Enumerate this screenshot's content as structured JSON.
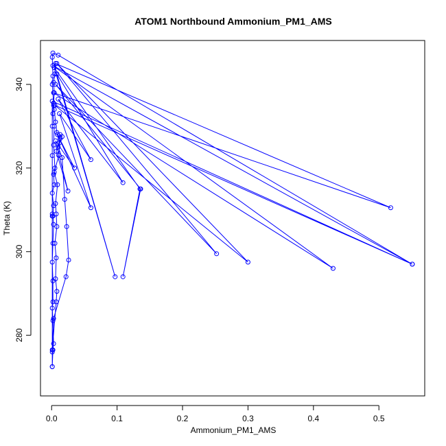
{
  "chart_data": {
    "type": "line",
    "title": "ATOM1 Northbound Ammonium_PM1_AMS",
    "xlabel": "Ammonium_PM1_AMS",
    "ylabel": "Theta (K)",
    "xlim": [
      -0.017,
      0.57
    ],
    "ylim": [
      265.5,
      350.5
    ],
    "xticks": [
      0.0,
      0.1,
      0.2,
      0.3,
      0.4,
      0.5
    ],
    "xtick_labels": [
      "0.0",
      "0.1",
      "0.2",
      "0.3",
      "0.4",
      "0.5"
    ],
    "yticks": [
      280,
      300,
      320,
      340
    ],
    "ytick_labels": [
      "280",
      "300",
      "320",
      "340"
    ],
    "grid": false,
    "series": [
      {
        "color": "#0000ff",
        "marker": "open-circle",
        "points": [
          [
            0.001,
            272.5
          ],
          [
            0.002,
            276.5
          ],
          [
            0.003,
            278.0
          ],
          [
            0.002,
            283.5
          ],
          [
            0.001,
            286.5
          ],
          [
            0.002,
            288.0
          ],
          [
            0.002,
            293.0
          ],
          [
            0.001,
            297.5
          ],
          [
            0.002,
            302.0
          ],
          [
            0.003,
            306.5
          ],
          [
            0.002,
            308.5
          ],
          [
            0.003,
            311.0
          ],
          [
            0.001,
            314.0
          ],
          [
            0.004,
            316.0
          ],
          [
            0.003,
            318.5
          ],
          [
            0.005,
            320.0
          ],
          [
            0.003,
            325.5
          ],
          [
            0.004,
            330.0
          ],
          [
            0.002,
            333.0
          ],
          [
            0.003,
            335.0
          ],
          [
            0.004,
            338.0
          ],
          [
            0.003,
            340.5
          ],
          [
            0.005,
            342.5
          ],
          [
            0.006,
            345.0
          ],
          [
            0.518,
            310.5
          ],
          [
            0.003,
            338.0
          ],
          [
            0.43,
            296.0
          ],
          [
            0.002,
            344.5
          ],
          [
            0.551,
            297.0
          ],
          [
            0.005,
            335.0
          ],
          [
            0.3,
            297.5
          ],
          [
            0.008,
            345.0
          ],
          [
            0.252,
            299.5
          ],
          [
            0.006,
            340.0
          ],
          [
            0.136,
            315.0
          ],
          [
            0.109,
            294.0
          ],
          [
            0.135,
            315.0
          ],
          [
            0.004,
            344.0
          ],
          [
            0.097,
            294.0
          ],
          [
            0.008,
            342.5
          ],
          [
            0.109,
            316.5
          ],
          [
            0.01,
            336.5
          ],
          [
            0.06,
            322.0
          ],
          [
            0.012,
            333.0
          ],
          [
            0.06,
            310.5
          ],
          [
            0.009,
            328.0
          ],
          [
            0.035,
            320.0
          ],
          [
            0.006,
            326.5
          ],
          [
            0.025,
            314.5
          ],
          [
            0.007,
            324.0
          ],
          [
            0.013,
            327.0
          ],
          [
            0.011,
            323.0
          ],
          [
            0.004,
            319.0
          ],
          [
            0.009,
            316.0
          ],
          [
            0.006,
            311.5
          ],
          [
            0.007,
            309.0
          ],
          [
            0.008,
            306.0
          ],
          [
            0.005,
            302.0
          ],
          [
            0.007,
            298.5
          ],
          [
            0.006,
            293.5
          ],
          [
            0.008,
            290.5
          ],
          [
            0.007,
            288.0
          ],
          [
            0.001,
            276.5
          ],
          [
            0.003,
            284.0
          ],
          [
            0.022,
            294.0
          ],
          [
            0.026,
            298.0
          ],
          [
            0.023,
            306.0
          ],
          [
            0.02,
            312.5
          ],
          [
            0.016,
            322.5
          ],
          [
            0.01,
            325.0
          ],
          [
            0.016,
            327.5
          ],
          [
            0.013,
            328.0
          ],
          [
            0.012,
            326.0
          ],
          [
            0.008,
            328.5
          ],
          [
            0.006,
            331.0
          ],
          [
            0.004,
            334.0
          ],
          [
            0.003,
            335.5
          ],
          [
            0.001,
            340.0
          ],
          [
            0.002,
            342.0
          ],
          [
            0.001,
            346.5
          ],
          [
            0.002,
            347.5
          ],
          [
            0.01,
            347.0
          ],
          [
            0.551,
            297.0
          ],
          [
            0.001,
            336.0
          ],
          [
            0.001,
            330.0
          ],
          [
            0.001,
            323.0
          ],
          [
            0.001,
            309.0
          ],
          [
            0.001,
            308.5
          ],
          [
            0.001,
            276.0
          ],
          [
            0.001,
            272.5
          ]
        ]
      }
    ]
  }
}
